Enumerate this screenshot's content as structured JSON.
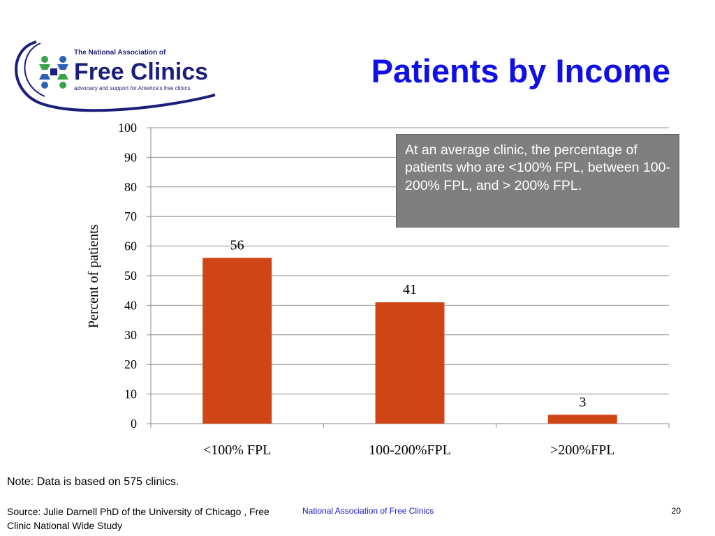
{
  "slide": {
    "title": "Patients by Income",
    "note": "Note: Data is based on 575 clinics.",
    "source": "Source: Julie Darnell PhD of the University of Chicago , Free Clinic National Wide Study",
    "footer_org": "National Association of Free Clinics",
    "page_number": "20"
  },
  "logo": {
    "line1": "The National Association of",
    "line2": "Free Clinics",
    "tagline": "advocacy and support for America's free clinics",
    "icon": "clinic-people-icon",
    "colors": {
      "navy": "#1b1e7a",
      "green": "#3aa34a",
      "blue": "#2e5fb5"
    }
  },
  "callout": {
    "text": "At an average clinic, the percentage of patients who are <100% FPL, between 100-200% FPL, and > 200% FPL."
  },
  "chart_data": {
    "type": "bar",
    "categories": [
      "<100% FPL",
      "100-200%FPL",
      ">200%FPL"
    ],
    "values": [
      56,
      41,
      3
    ],
    "data_labels": [
      "56",
      "41",
      "3"
    ],
    "ylabel": "Percent of patients",
    "xlabel": "",
    "ylim": [
      0,
      100
    ],
    "yticks": [
      0,
      10,
      20,
      30,
      40,
      50,
      60,
      70,
      80,
      90,
      100
    ],
    "grid": true,
    "bar_color": "#cf4516"
  }
}
